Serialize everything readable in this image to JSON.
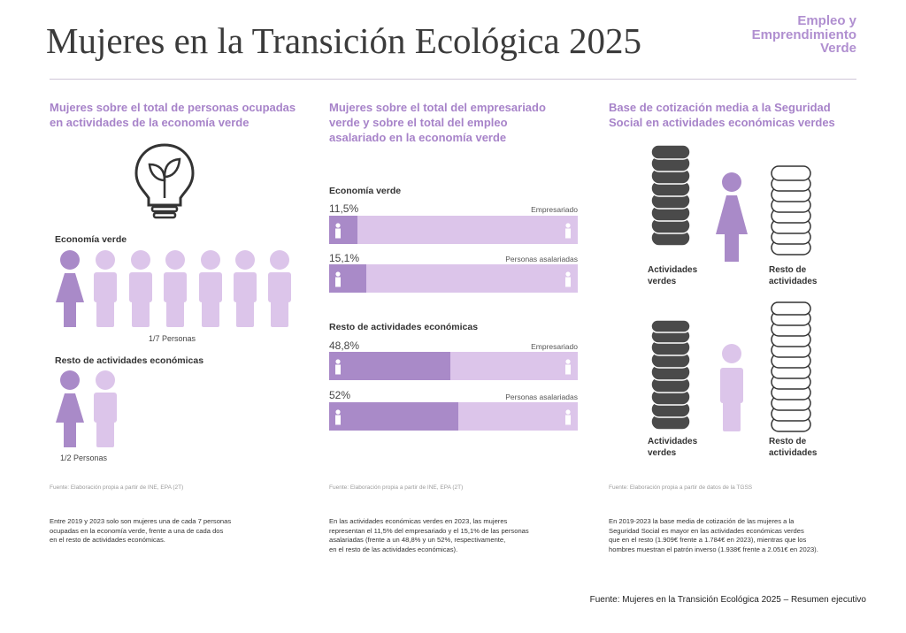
{
  "title": "Mujeres en la Transición Ecológica 2025",
  "tag": [
    "Empleo y",
    "Emprendimiento",
    "Verde"
  ],
  "col1": {
    "title": [
      "Mujeres sobre el total de personas ocupadas",
      "en actividades de la economía verde"
    ],
    "group1_label": "Economía verde",
    "group1_caption": "1/7 Personas",
    "group1_ratio": "1/7",
    "group2_label": "Resto de actividades económicas",
    "group2_caption": "1/2 Personas",
    "group2_ratio": "1/2",
    "source": "Fuente: Elaboración propia a partir de INE, EPA (2T)",
    "note": [
      "Entre 2019 y 2023 solo son mujeres una de cada 7 personas",
      "ocupadas en la economía verde, frente a una de cada dos",
      "en el resto de actividades económicas."
    ]
  },
  "col2": {
    "title": [
      "Mujeres sobre el total del empresariado",
      "verde y sobre el total del empleo",
      "asalariado en la economía verde"
    ],
    "section1": "Economía verde",
    "section2": "Resto de actividades económicas",
    "bars": [
      {
        "pct": "11,5%",
        "label": "Empresariado",
        "value": 11.5
      },
      {
        "pct": "15,1%",
        "label": "Personas asalariadas",
        "value": 15.1
      },
      {
        "pct": "48,8%",
        "label": "Empresariado",
        "value": 48.8
      },
      {
        "pct": "52%",
        "label": "Personas asalariadas",
        "value": 52
      }
    ],
    "source": "Fuente: Elaboración propia a partir de INE, EPA (2T)",
    "note": [
      "En las actividades económicas verdes en 2023, las mujeres",
      "representan el 11,5% del empresariado y el 15,1%  de las personas",
      "asalariadas (frente a un 48,8% y un 52%, respectivamente,",
      "en el resto de las actividades económicas)."
    ]
  },
  "col3": {
    "title": [
      "Base de cotización media a la Seguridad",
      "Social en actividades económicas verdes"
    ],
    "label_verdes": [
      "Actividades",
      "verdes"
    ],
    "label_resto": [
      "Resto de",
      "actividades"
    ],
    "source": "Fuente: Elaboración propia a partir de datos de la TGSS",
    "note": [
      "En 2019-2023 la base media de cotización de las mujeres a la",
      "Seguridad Social es mayor en las actividades económicas verdes",
      "que en el resto (1.909€ frente a 1.784€ en 2023), mientras que los",
      "hombres muestran el patrón inverso (1.938€ frente a 2.051€ en 2023)."
    ]
  },
  "footer": "Fuente: Mujeres en la Transición Ecológica 2025 – Resumen ejecutivo",
  "colors": {
    "accent": "#a783c9",
    "dark_purple": "#a98ac8",
    "light_purple": "#dcc5ea",
    "coin_dark": "#4a4a4a"
  }
}
